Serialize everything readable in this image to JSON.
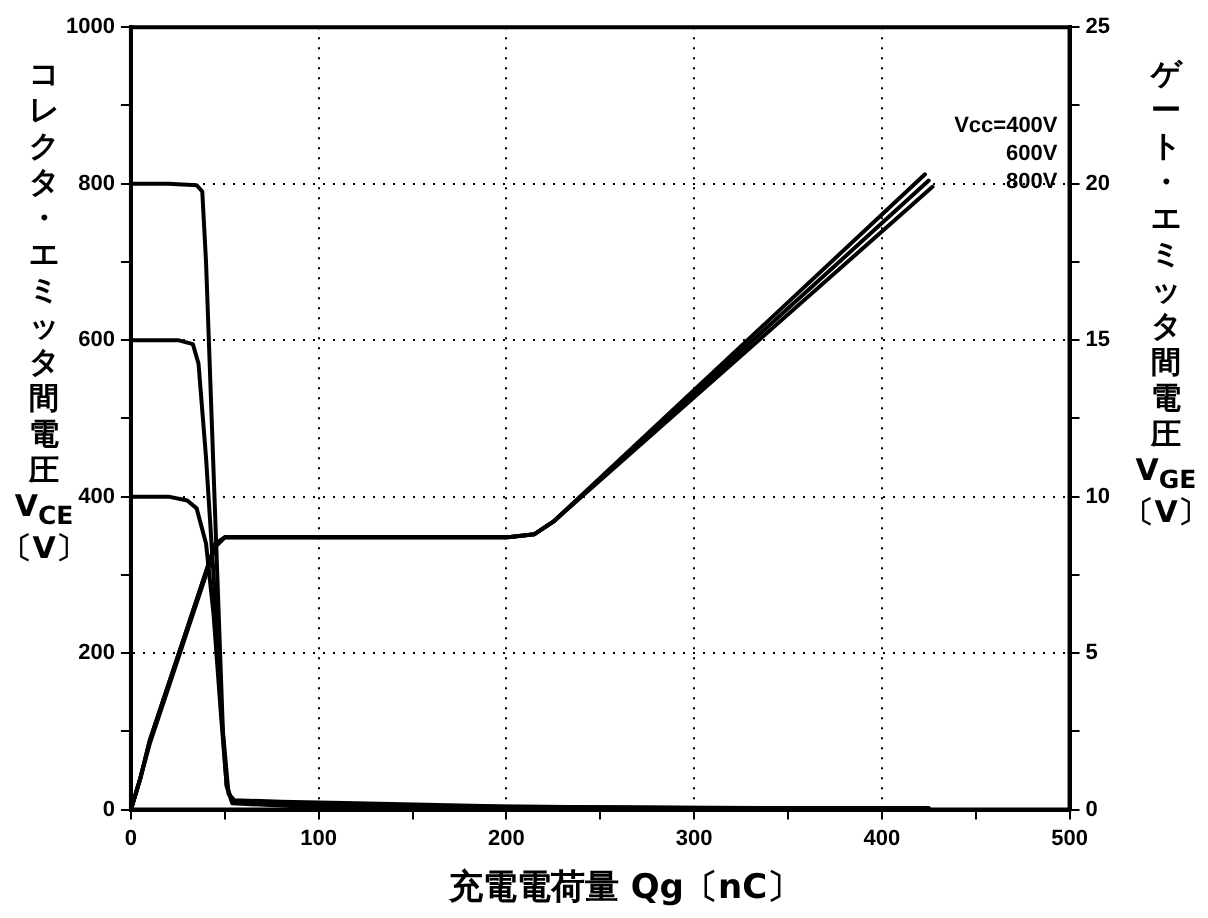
{
  "chart_data": {
    "type": "line",
    "xlabel": "充電電荷量 Qg〔nC〕",
    "ylabel": "コレクタ・エミッタ間電圧\nV$_{CE}$\n〔V〕",
    "y2label": "ゲート・エミッタ間電圧\nV$_{GE}$\n〔V〕",
    "xlim": [
      0,
      500
    ],
    "xticks": [
      0,
      {
        "value": 50,
        "label": null
      },
      100,
      {
        "value": 150,
        "label": null
      },
      200,
      {
        "value": 250,
        "label": null
      },
      300,
      {
        "value": 350,
        "label": null
      },
      400,
      {
        "value": 450,
        "label": null
      },
      500
    ],
    "ylim": [
      0,
      1000
    ],
    "yticks": [
      0,
      {
        "value": 100,
        "label": null
      },
      200,
      {
        "value": 300,
        "label": null
      },
      400,
      {
        "value": 500,
        "label": null
      },
      600,
      {
        "value": 700,
        "label": null
      },
      800,
      {
        "value": 900,
        "label": null
      },
      1000
    ],
    "y2lim": [
      0,
      25
    ],
    "y2ticks": [
      0,
      {
        "value": 2.5,
        "label": null
      },
      5,
      {
        "value": 7.5,
        "label": null
      },
      10,
      {
        "value": 12.5,
        "label": null
      },
      15,
      {
        "value": 17.5,
        "label": null
      },
      20,
      {
        "value": 22.5,
        "label": null
      },
      25
    ],
    "grid": true,
    "legend": false,
    "marker": "none",
    "line_style": "solid",
    "series": [
      {
        "color": "#000000",
        "x": [
          0,
          20,
          35,
          38,
          40,
          43,
          46,
          49,
          52,
          55,
          80,
          120,
          200,
          300,
          425
        ],
        "values": [
          800,
          800,
          798,
          790,
          700,
          500,
          300,
          100,
          20,
          12,
          10,
          8,
          4,
          2,
          2
        ]
      },
      {
        "color": "#000000",
        "x": [
          0,
          25,
          33,
          36,
          40,
          44,
          48,
          51,
          54,
          100,
          425
        ],
        "values": [
          600,
          600,
          595,
          570,
          450,
          300,
          130,
          30,
          10,
          5,
          1
        ]
      },
      {
        "color": "#000000",
        "x": [
          0,
          20,
          30,
          35,
          40,
          44,
          48,
          51,
          54,
          100,
          425
        ],
        "values": [
          400,
          400,
          395,
          385,
          340,
          250,
          120,
          30,
          8,
          3,
          1
        ]
      },
      {
        "name": "Vcc=400V",
        "axis": "y2",
        "color": "#000000",
        "x": [
          0,
          5,
          10,
          20,
          30,
          40,
          45,
          50,
          100,
          200,
          215,
          225,
          423
        ],
        "values": [
          0,
          1,
          2.2,
          4,
          5.8,
          7.6,
          8.5,
          8.7,
          8.7,
          8.7,
          8.8,
          9.2,
          20.3
        ]
      },
      {
        "name": "600V",
        "axis": "y2",
        "color": "#000000",
        "x": [
          0,
          5,
          10,
          20,
          30,
          40,
          45,
          50,
          100,
          200,
          215,
          225,
          425
        ],
        "values": [
          0,
          1,
          2.2,
          4,
          5.8,
          7.6,
          8.5,
          8.7,
          8.7,
          8.7,
          8.8,
          9.2,
          20.1
        ]
      },
      {
        "name": "800V",
        "axis": "y2",
        "color": "#000000",
        "x": [
          0,
          5,
          10,
          20,
          30,
          40,
          45,
          50,
          100,
          200,
          215,
          225,
          427
        ],
        "values": [
          0,
          1,
          2.1,
          3.9,
          5.7,
          7.5,
          8.4,
          8.7,
          8.7,
          8.7,
          8.8,
          9.2,
          19.9
        ]
      }
    ]
  }
}
